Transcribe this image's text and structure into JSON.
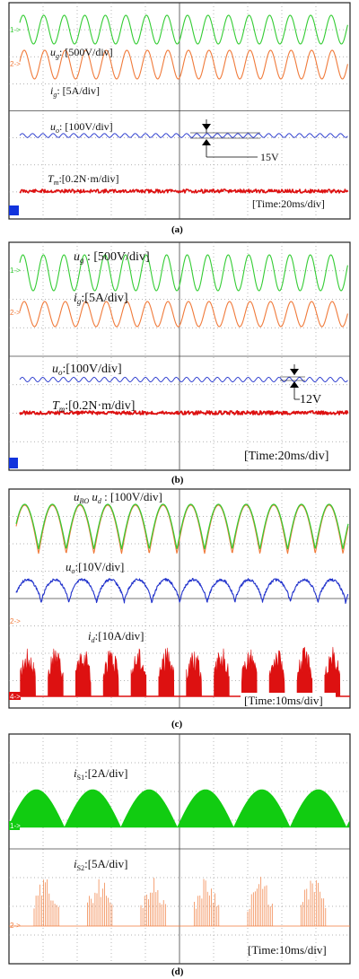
{
  "colors": {
    "grid_dot": "#9a9a9a",
    "border": "#222222",
    "green": "#33cc33",
    "orange": "#f07a3a",
    "blue": "#2233cc",
    "red": "#dd1111",
    "bright_green": "#11cc11"
  },
  "chart_data": [
    {
      "type": "line",
      "id": "a",
      "caption": "(a)",
      "labels": {
        "ug": "u_g: [500V/div]",
        "ig": "i_g: [5A/div]",
        "uo": "u_o: [100V/div]",
        "tm": "T_m: [0.2N·m/div]",
        "time": "[Time:20ms/div]",
        "ripple": "15V"
      },
      "markers": [
        "1->",
        "2->"
      ],
      "series": [
        {
          "name": "u_g",
          "wave": "sine",
          "cycles": 16
        },
        {
          "name": "i_g",
          "wave": "sine",
          "cycles": 16
        },
        {
          "name": "u_o",
          "wave": "ripple",
          "cycles": 32
        },
        {
          "name": "T_m",
          "wave": "noise"
        }
      ]
    },
    {
      "type": "line",
      "id": "b",
      "caption": "(b)",
      "labels": {
        "ug": "u_g : [500V/div]",
        "ig": "i_g:[5A/div]",
        "uo": "u_o:[100V/div]",
        "tm": "T_m:[0.2N·m/div]",
        "time": "[Time:20ms/div]",
        "ripple": "12V"
      },
      "markers": [
        "1->",
        "2->"
      ],
      "series": [
        {
          "name": "u_g",
          "wave": "sine",
          "cycles": 16
        },
        {
          "name": "i_g",
          "wave": "sine",
          "cycles": 16
        },
        {
          "name": "u_o",
          "wave": "ripple",
          "cycles": 32
        },
        {
          "name": "T_m",
          "wave": "noise"
        }
      ]
    },
    {
      "type": "line",
      "id": "c",
      "caption": "(c)",
      "labels": {
        "ubo": "u_BO u_d : [100V/div]",
        "uo": "u_o:[10V/div]",
        "id": "i_d:[10A/div]",
        "time": "[Time:10ms/div]"
      },
      "markers": [
        "2->",
        "4->"
      ],
      "series": [
        {
          "name": "u_BO",
          "wave": "abs-sine",
          "cycles": 12
        },
        {
          "name": "u_d",
          "wave": "abs-sine",
          "cycles": 12
        },
        {
          "name": "u_o",
          "wave": "humps",
          "cycles": 12
        },
        {
          "name": "i_d",
          "wave": "bursts",
          "cycles": 12
        }
      ]
    },
    {
      "type": "area",
      "id": "d",
      "caption": "(d)",
      "labels": {
        "is1": "i_S1:[2A/div]",
        "is2": "i_S2:[5A/div]",
        "time": "[Time:10ms/div]"
      },
      "markers": [
        "1->",
        "2->"
      ],
      "series": [
        {
          "name": "i_S1",
          "wave": "filled-humps",
          "cycles": 6
        },
        {
          "name": "i_S2",
          "wave": "spike-bursts",
          "cycles": 6
        }
      ]
    }
  ]
}
